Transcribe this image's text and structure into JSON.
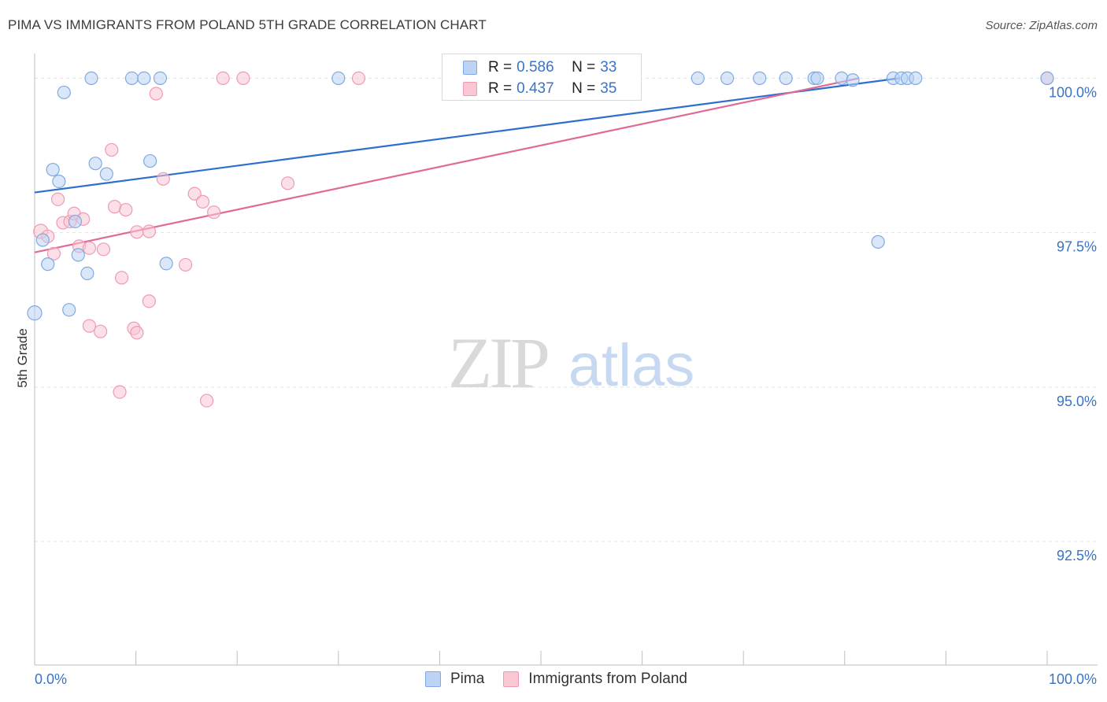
{
  "title": "PIMA VS IMMIGRANTS FROM POLAND 5TH GRADE CORRELATION CHART",
  "source": "Source: ZipAtlas.com",
  "watermark": {
    "zip": "ZIP",
    "atlas": "atlas"
  },
  "colors": {
    "pima_fill": "#bcd3f3",
    "pima_stroke": "#7faae3",
    "pima_line": "#2f6fcc",
    "poland_fill": "#f9c6d4",
    "poland_stroke": "#ef9ab4",
    "poland_line": "#e06a96",
    "axis_text": "#3a73c4",
    "grid": "#e3e3e3"
  },
  "legend": {
    "pima": {
      "r_label": "R = ",
      "r_value": "0.586",
      "n_label": "N = ",
      "n_value": "33"
    },
    "poland": {
      "r_label": "R = ",
      "r_value": "0.437",
      "n_label": "N = ",
      "n_value": "35"
    }
  },
  "bottom_legend": {
    "pima": "Pima",
    "poland": "Immigrants from Poland"
  },
  "chart_data": {
    "type": "scatter",
    "title": "PIMA VS IMMIGRANTS FROM POLAND 5TH GRADE CORRELATION CHART",
    "xlabel": "",
    "ylabel": "5th Grade",
    "xlim": [
      0,
      100
    ],
    "ylim": [
      90.5,
      100.4
    ],
    "x_tick_labels": [
      "0.0%",
      "100.0%"
    ],
    "y_ticks": [
      92.5,
      95.0,
      97.5,
      100.0
    ],
    "y_tick_labels": [
      "92.5%",
      "95.0%",
      "97.5%",
      "100.0%"
    ],
    "grid": true,
    "series": [
      {
        "name": "Pima",
        "r": 0.586,
        "n": 33,
        "trend": {
          "x": [
            0,
            85.4
          ],
          "y": [
            98.15,
            100.0
          ]
        },
        "points": [
          {
            "x": 0.0,
            "y": 96.2,
            "s": 9
          },
          {
            "x": 2.9,
            "y": 99.77,
            "s": 8
          },
          {
            "x": 5.6,
            "y": 100.0,
            "s": 8
          },
          {
            "x": 9.6,
            "y": 100.0,
            "s": 8
          },
          {
            "x": 10.8,
            "y": 100.0,
            "s": 8
          },
          {
            "x": 12.4,
            "y": 100.0,
            "s": 8
          },
          {
            "x": 30.0,
            "y": 100.0,
            "s": 8
          },
          {
            "x": 65.5,
            "y": 100.0,
            "s": 8
          },
          {
            "x": 68.4,
            "y": 100.0,
            "s": 8
          },
          {
            "x": 71.6,
            "y": 100.0,
            "s": 8
          },
          {
            "x": 74.2,
            "y": 100.0,
            "s": 8
          },
          {
            "x": 77.0,
            "y": 100.0,
            "s": 8
          },
          {
            "x": 77.3,
            "y": 100.0,
            "s": 8
          },
          {
            "x": 79.7,
            "y": 100.0,
            "s": 8
          },
          {
            "x": 80.8,
            "y": 99.97,
            "s": 8
          },
          {
            "x": 84.8,
            "y": 100.0,
            "s": 8
          },
          {
            "x": 85.6,
            "y": 100.0,
            "s": 8
          },
          {
            "x": 86.2,
            "y": 100.0,
            "s": 8
          },
          {
            "x": 87.0,
            "y": 100.0,
            "s": 8
          },
          {
            "x": 100.0,
            "y": 100.0,
            "s": 8
          },
          {
            "x": 1.8,
            "y": 98.52,
            "s": 8
          },
          {
            "x": 2.4,
            "y": 98.33,
            "s": 8
          },
          {
            "x": 6.0,
            "y": 98.62,
            "s": 8
          },
          {
            "x": 7.1,
            "y": 98.45,
            "s": 8
          },
          {
            "x": 11.4,
            "y": 98.66,
            "s": 8
          },
          {
            "x": 0.8,
            "y": 97.38,
            "s": 8
          },
          {
            "x": 1.3,
            "y": 96.99,
            "s": 8
          },
          {
            "x": 4.0,
            "y": 97.68,
            "s": 8
          },
          {
            "x": 4.3,
            "y": 97.14,
            "s": 8
          },
          {
            "x": 5.2,
            "y": 96.84,
            "s": 8
          },
          {
            "x": 3.4,
            "y": 96.25,
            "s": 8
          },
          {
            "x": 13.0,
            "y": 97.0,
            "s": 8
          },
          {
            "x": 83.3,
            "y": 97.35,
            "s": 8
          }
        ]
      },
      {
        "name": "Immigrants from Poland",
        "r": 0.437,
        "n": 35,
        "trend": {
          "x": [
            0,
            81.4
          ],
          "y": [
            97.18,
            100.0
          ]
        },
        "points": [
          {
            "x": 0.6,
            "y": 97.52,
            "s": 9
          },
          {
            "x": 1.3,
            "y": 97.44,
            "s": 8
          },
          {
            "x": 1.9,
            "y": 97.16,
            "s": 8
          },
          {
            "x": 2.3,
            "y": 98.04,
            "s": 8
          },
          {
            "x": 2.8,
            "y": 97.66,
            "s": 8
          },
          {
            "x": 3.5,
            "y": 97.68,
            "s": 8
          },
          {
            "x": 3.9,
            "y": 97.81,
            "s": 8
          },
          {
            "x": 4.4,
            "y": 97.28,
            "s": 8
          },
          {
            "x": 4.8,
            "y": 97.72,
            "s": 8
          },
          {
            "x": 5.4,
            "y": 97.25,
            "s": 8
          },
          {
            "x": 6.8,
            "y": 97.23,
            "s": 8
          },
          {
            "x": 7.6,
            "y": 98.84,
            "s": 8
          },
          {
            "x": 7.9,
            "y": 97.92,
            "s": 8
          },
          {
            "x": 9.0,
            "y": 97.87,
            "s": 8
          },
          {
            "x": 10.1,
            "y": 97.51,
            "s": 8
          },
          {
            "x": 11.3,
            "y": 97.52,
            "s": 8
          },
          {
            "x": 12.7,
            "y": 98.37,
            "s": 8
          },
          {
            "x": 15.8,
            "y": 98.13,
            "s": 8
          },
          {
            "x": 16.6,
            "y": 98.0,
            "s": 8
          },
          {
            "x": 17.7,
            "y": 97.83,
            "s": 8
          },
          {
            "x": 8.6,
            "y": 96.77,
            "s": 8
          },
          {
            "x": 11.3,
            "y": 96.39,
            "s": 8
          },
          {
            "x": 14.9,
            "y": 96.98,
            "s": 8
          },
          {
            "x": 5.4,
            "y": 95.99,
            "s": 8
          },
          {
            "x": 6.5,
            "y": 95.9,
            "s": 8
          },
          {
            "x": 9.8,
            "y": 95.95,
            "s": 8
          },
          {
            "x": 10.1,
            "y": 95.88,
            "s": 8
          },
          {
            "x": 8.4,
            "y": 94.92,
            "s": 8
          },
          {
            "x": 17.0,
            "y": 94.78,
            "s": 8
          },
          {
            "x": 12.0,
            "y": 99.75,
            "s": 8
          },
          {
            "x": 18.6,
            "y": 100.0,
            "s": 8
          },
          {
            "x": 20.6,
            "y": 100.0,
            "s": 8
          },
          {
            "x": 32.0,
            "y": 100.0,
            "s": 8
          },
          {
            "x": 25.0,
            "y": 98.3,
            "s": 8
          },
          {
            "x": 100.0,
            "y": 100.0,
            "s": 8
          }
        ]
      }
    ]
  }
}
